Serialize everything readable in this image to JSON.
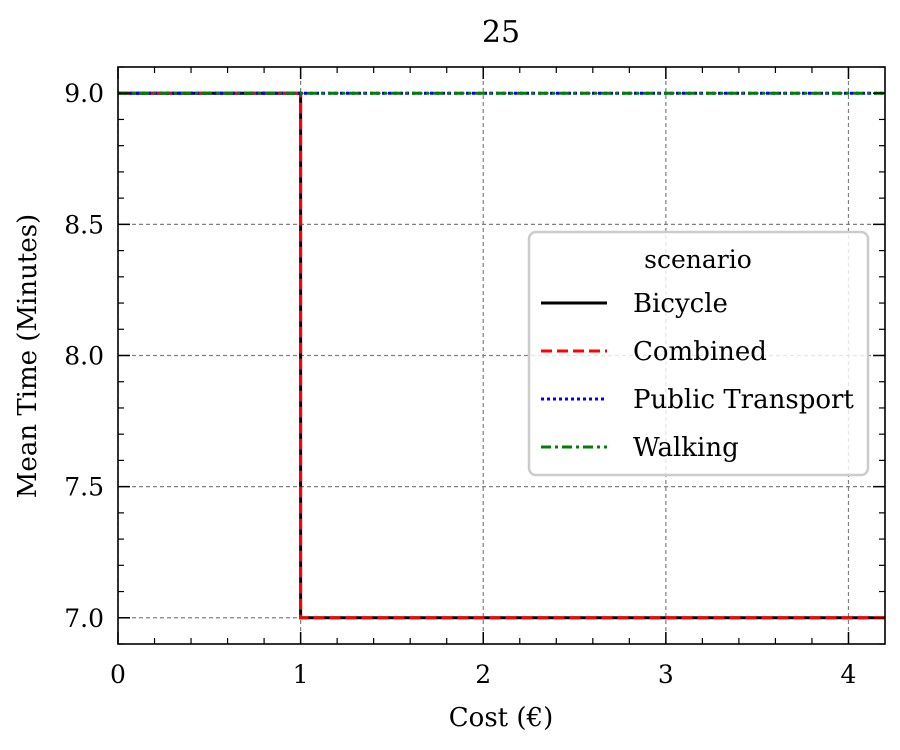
{
  "chart_data": {
    "type": "line",
    "title": "25",
    "xlabel": "Cost (€)",
    "ylabel": "Mean Time (Minutes)",
    "xlim": [
      0,
      4.2
    ],
    "ylim": [
      6.9,
      9.1
    ],
    "xticks": [
      0,
      1,
      2,
      3,
      4
    ],
    "yticks": [
      7.0,
      7.5,
      8.0,
      8.5,
      9.0
    ],
    "xtick_labels": [
      "0",
      "1",
      "2",
      "3",
      "4"
    ],
    "ytick_labels": [
      "7.0",
      "7.5",
      "8.0",
      "8.5",
      "9.0"
    ],
    "grid": true,
    "step": true,
    "legend": {
      "title": "scenario",
      "placement": "center-right"
    },
    "series": [
      {
        "name": "Bicycle",
        "color": "#000000",
        "style": "solid",
        "x": [
          0,
          1,
          1,
          4.2
        ],
        "y": [
          9.0,
          9.0,
          7.0,
          7.0
        ]
      },
      {
        "name": "Combined",
        "color": "#ff0000",
        "style": "dashed",
        "x": [
          0,
          1,
          1,
          4.2
        ],
        "y": [
          9.0,
          9.0,
          7.0,
          7.0
        ]
      },
      {
        "name": "Public Transport",
        "color": "#0000ff",
        "style": "dotted",
        "x": [
          0,
          4.2
        ],
        "y": [
          9.0,
          9.0
        ]
      },
      {
        "name": "Walking",
        "color": "#008000",
        "style": "dashdot",
        "x": [
          0,
          4.2
        ],
        "y": [
          9.0,
          9.0
        ]
      }
    ]
  }
}
